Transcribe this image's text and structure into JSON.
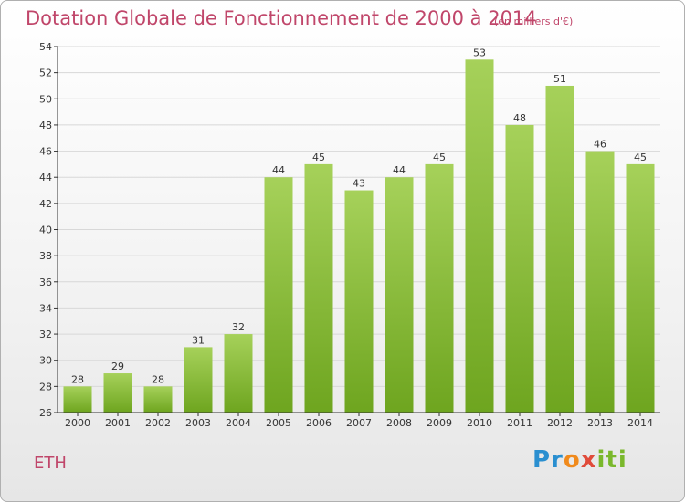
{
  "header": {
    "title": "Dotation Globale de Fonctionnement de 2000 à 2014",
    "subtitle": "(en milliers d'€)"
  },
  "footer": {
    "place": "ETH",
    "logo": "Proxiti"
  },
  "colors": {
    "bar_light": "#a6d15a",
    "bar_dark": "#6ea51f",
    "title": "#c0466a",
    "axis": "#333333",
    "grid": "#d8d8d8"
  },
  "chart_data": {
    "type": "bar",
    "categories": [
      "2000",
      "2001",
      "2002",
      "2003",
      "2004",
      "2005",
      "2006",
      "2007",
      "2008",
      "2009",
      "2010",
      "2011",
      "2012",
      "2013",
      "2014"
    ],
    "values": [
      28,
      29,
      28,
      31,
      32,
      44,
      45,
      43,
      44,
      45,
      53,
      48,
      51,
      46,
      45
    ],
    "title": "Dotation Globale de Fonctionnement de 2000 à 2014",
    "subtitle": "(en milliers d'€)",
    "xlabel": "",
    "ylabel": "",
    "ylim": [
      26,
      54
    ],
    "yticks": [
      26,
      28,
      30,
      32,
      34,
      36,
      38,
      40,
      42,
      44,
      46,
      48,
      50,
      52,
      54
    ],
    "grid": true,
    "data_labels": true
  }
}
